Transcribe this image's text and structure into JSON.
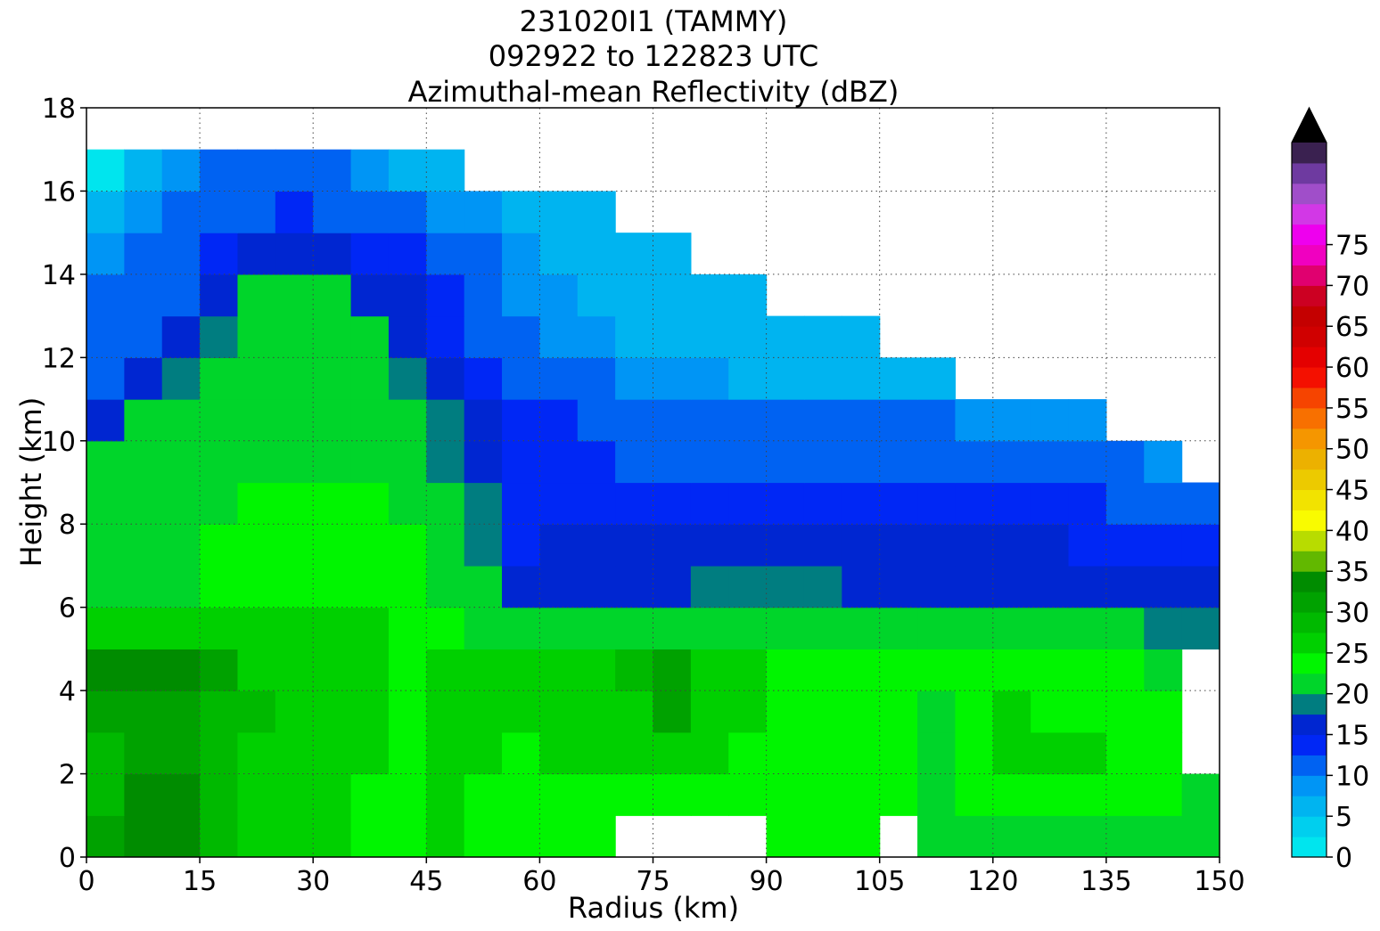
{
  "chart_data": {
    "type": "heatmap",
    "title_lines": [
      "231020I1 (TAMMY)",
      "092922 to 122823 UTC",
      "Azimuthal-mean Reflectivity (dBZ)"
    ],
    "xlabel": "Radius (km)",
    "ylabel": "Height (km)",
    "xlim": [
      0,
      150
    ],
    "ylim": [
      0,
      18
    ],
    "xticks": [
      "0",
      "15",
      "30",
      "45",
      "60",
      "75",
      "90",
      "105",
      "120",
      "135",
      "150"
    ],
    "yticks": [
      "0",
      "2",
      "4",
      "6",
      "8",
      "10",
      "12",
      "14",
      "16",
      "18"
    ],
    "grid": "dotted",
    "colorbar": {
      "ticks": [
        "0",
        "5",
        "10",
        "15",
        "20",
        "25",
        "30",
        "35",
        "40",
        "45",
        "50",
        "55",
        "60",
        "65",
        "70",
        "75"
      ],
      "levels_start": 0,
      "level_step": 2.5,
      "extend": "max",
      "over_color": "#000000",
      "colors": [
        "#00e5ee",
        "#00cfee",
        "#00b4f0",
        "#0095f5",
        "#0062f2",
        "#0027f5",
        "#0026d1",
        "#007d80",
        "#00d52a",
        "#00f500",
        "#00d000",
        "#00b900",
        "#00a200",
        "#008c00",
        "#62b800",
        "#b8dc00",
        "#f9fb00",
        "#f2e300",
        "#ecca00",
        "#ecb100",
        "#f59600",
        "#f87000",
        "#f64400",
        "#f41000",
        "#e40000",
        "#d00000",
        "#c40000",
        "#cc0022",
        "#e0006f",
        "#f000c0",
        "#ee00ee",
        "#d238e6",
        "#a04ec9",
        "#6e3aa0",
        "#3a2150"
      ]
    },
    "z_rows": [
      {
        "y": 0.5,
        "values": [
          31,
          33,
          33,
          29,
          27,
          26,
          26,
          24,
          24,
          25,
          24,
          24,
          24,
          24,
          null,
          null,
          null,
          null,
          24,
          24,
          24,
          null,
          22,
          22,
          22,
          22,
          22,
          22,
          22,
          22
        ]
      },
      {
        "y": 1.5,
        "values": [
          28,
          33,
          33,
          29,
          27,
          26,
          26,
          24,
          24,
          25,
          24,
          24,
          24,
          24,
          24,
          24,
          24,
          24,
          24,
          24,
          24,
          24,
          22,
          24,
          24,
          24,
          24,
          24,
          24,
          22
        ]
      },
      {
        "y": 2.5,
        "values": [
          29,
          31,
          31,
          29,
          27,
          26,
          26,
          25,
          24,
          25,
          25,
          24,
          25,
          26,
          26,
          26,
          25,
          24,
          24,
          24,
          24,
          24,
          22,
          24,
          26,
          25,
          25,
          24,
          24,
          null
        ]
      },
      {
        "y": 3.5,
        "values": [
          30,
          31,
          30,
          29,
          28,
          27,
          26,
          25,
          24,
          25,
          25,
          25,
          25,
          27,
          27,
          30,
          27,
          25,
          24,
          24,
          24,
          24,
          22,
          24,
          25,
          24,
          24,
          24,
          24,
          null
        ]
      },
      {
        "y": 4.5,
        "values": [
          33,
          33,
          33,
          31,
          27,
          26,
          25,
          25,
          24,
          25,
          26,
          26,
          26,
          27,
          28,
          30,
          27,
          26,
          24,
          24,
          24,
          24,
          23,
          24,
          24,
          24,
          24,
          24,
          22,
          null
        ]
      },
      {
        "y": 5.5,
        "values": [
          25,
          25,
          26,
          26,
          26,
          25,
          25,
          25,
          24,
          24,
          22,
          21,
          20,
          20,
          20,
          20,
          20,
          20,
          20,
          20,
          20,
          20,
          20,
          21,
          21,
          21,
          21,
          20,
          19,
          18
        ]
      },
      {
        "y": 6.5,
        "values": [
          22,
          22,
          22,
          24,
          24,
          24,
          24,
          24,
          23,
          22,
          20,
          17,
          16,
          16,
          17,
          17,
          18,
          18,
          18,
          18,
          17,
          17,
          17,
          17,
          17,
          17,
          16,
          16,
          15,
          15
        ]
      },
      {
        "y": 7.5,
        "values": [
          21,
          22,
          22,
          23,
          24,
          24,
          24,
          24,
          23,
          21,
          19,
          14,
          15,
          15,
          15,
          15,
          17,
          17,
          17,
          16,
          15,
          15,
          15,
          15,
          15,
          15,
          14,
          14,
          13,
          13
        ]
      },
      {
        "y": 8.5,
        "values": [
          21,
          22,
          22,
          22,
          23,
          23,
          23,
          23,
          22,
          20,
          18,
          14,
          14,
          14,
          13,
          13,
          13,
          13,
          13,
          13,
          13,
          13,
          13,
          13,
          13,
          13,
          13,
          12,
          11,
          11
        ]
      },
      {
        "y": 9.5,
        "values": [
          20,
          22,
          22,
          22,
          22,
          22,
          22,
          22,
          21,
          19,
          17,
          14,
          14,
          14,
          12,
          12,
          12,
          12,
          12,
          12,
          12,
          12,
          12,
          12,
          12,
          11,
          11,
          10,
          9,
          null
        ]
      },
      {
        "y": 10.5,
        "values": [
          16,
          21,
          22,
          22,
          22,
          22,
          22,
          22,
          20,
          18,
          16,
          14,
          13,
          12,
          11,
          11,
          11,
          11,
          11,
          10,
          10,
          10,
          10,
          9,
          9,
          9,
          9,
          null,
          null,
          null
        ]
      },
      {
        "y": 11.5,
        "values": [
          12,
          15,
          19,
          21,
          22,
          22,
          22,
          21,
          19,
          16,
          14,
          12,
          11,
          10,
          9,
          8,
          8,
          7,
          7,
          7,
          7,
          7,
          7,
          null,
          null,
          null,
          null,
          null,
          null,
          null
        ]
      },
      {
        "y": 12.5,
        "values": [
          11,
          12,
          15,
          19,
          21,
          22,
          22,
          20,
          17,
          14,
          12,
          11,
          9,
          8,
          7,
          6,
          6,
          6,
          5,
          5,
          5,
          null,
          null,
          null,
          null,
          null,
          null,
          null,
          null,
          null
        ]
      },
      {
        "y": 13.5,
        "values": [
          10,
          11,
          12,
          16,
          20,
          21,
          20,
          17,
          15,
          13,
          11,
          9,
          8,
          7,
          6,
          5,
          5,
          5,
          null,
          null,
          null,
          null,
          null,
          null,
          null,
          null,
          null,
          null,
          null,
          null
        ]
      },
      {
        "y": 14.5,
        "values": [
          9,
          10,
          11,
          13,
          16,
          17,
          16,
          14,
          13,
          11,
          10,
          8,
          7,
          6,
          5,
          5,
          null,
          null,
          null,
          null,
          null,
          null,
          null,
          null,
          null,
          null,
          null,
          null,
          null,
          null
        ]
      },
      {
        "y": 15.5,
        "values": [
          7,
          8,
          10,
          11,
          12,
          13,
          12,
          11,
          10,
          9,
          8,
          7,
          6,
          5,
          null,
          null,
          null,
          null,
          null,
          null,
          null,
          null,
          null,
          null,
          null,
          null,
          null,
          null,
          null,
          null
        ]
      },
      {
        "y": 16.5,
        "values": [
          2,
          5,
          9,
          11,
          11,
          11,
          11,
          9,
          7,
          5,
          null,
          null,
          null,
          null,
          null,
          null,
          null,
          null,
          null,
          null,
          null,
          null,
          null,
          null,
          null,
          null,
          null,
          null,
          null,
          null
        ]
      }
    ],
    "x_centers": [
      2.5,
      7.5,
      12.5,
      17.5,
      22.5,
      27.5,
      32.5,
      37.5,
      42.5,
      47.5,
      52.5,
      57.5,
      62.5,
      67.5,
      72.5,
      77.5,
      82.5,
      87.5,
      92.5,
      97.5,
      102.5,
      107.5,
      112.5,
      117.5,
      122.5,
      127.5,
      132.5,
      137.5,
      142.5,
      147.5
    ]
  }
}
